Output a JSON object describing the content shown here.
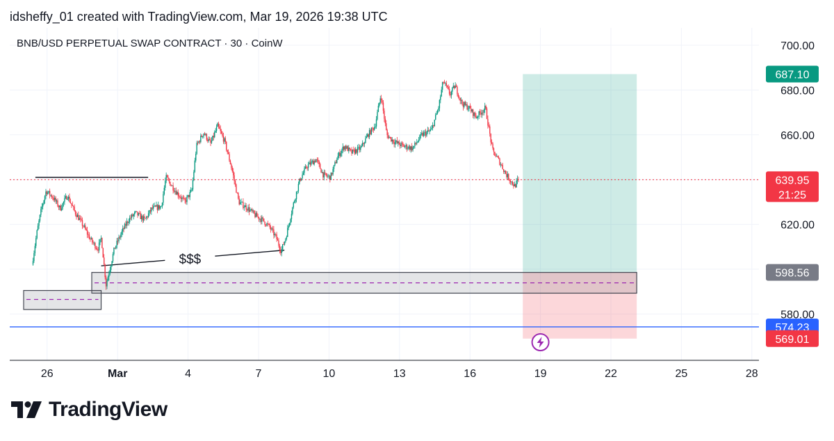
{
  "header": {
    "credit": "idsheffy_01 created with TradingView.com, Mar 19, 2026 19:38 UTC"
  },
  "chart": {
    "symbol_title": "BNB/USD PERPETUAL SWAP CONTRACT · 30 · CoinW"
  },
  "brand": {
    "name": "TradingView"
  },
  "chart_data": {
    "type": "candlestick",
    "title": "BNB/USD PERPETUAL SWAP CONTRACT · 30 · CoinW",
    "x_axis": {
      "start_date": "2026-02-25",
      "ticks": [
        {
          "label": "26",
          "day": 1
        },
        {
          "label": "Mar",
          "day": 4,
          "bold": true
        },
        {
          "label": "4",
          "day": 7
        },
        {
          "label": "7",
          "day": 10
        },
        {
          "label": "10",
          "day": 13
        },
        {
          "label": "13",
          "day": 16
        },
        {
          "label": "16",
          "day": 19
        },
        {
          "label": "19",
          "day": 22
        },
        {
          "label": "22",
          "day": 25
        },
        {
          "label": "25",
          "day": 28
        },
        {
          "label": "28",
          "day": 31
        }
      ]
    },
    "y_axis": {
      "ticks": [
        580,
        600,
        620,
        640,
        660,
        680,
        700
      ],
      "tick_labels": [
        "580.00",
        "600.00",
        "620.00",
        "640.00",
        "660.00",
        "680.00",
        "700.00"
      ],
      "ylim": [
        566,
        715
      ]
    },
    "price_path": [
      [
        0.4,
        602
      ],
      [
        0.6,
        616
      ],
      [
        0.8,
        627
      ],
      [
        1.0,
        635
      ],
      [
        1.3,
        632
      ],
      [
        1.6,
        627
      ],
      [
        1.9,
        633
      ],
      [
        2.2,
        626
      ],
      [
        2.6,
        619
      ],
      [
        2.9,
        613
      ],
      [
        3.2,
        609
      ],
      [
        3.35,
        614
      ],
      [
        3.55,
        593
      ],
      [
        3.75,
        602
      ],
      [
        3.9,
        609
      ],
      [
        4.2,
        616
      ],
      [
        4.5,
        622
      ],
      [
        4.8,
        625
      ],
      [
        5.2,
        622
      ],
      [
        5.5,
        627
      ],
      [
        5.9,
        628
      ],
      [
        6.1,
        641
      ],
      [
        6.5,
        635
      ],
      [
        6.9,
        630
      ],
      [
        7.2,
        635
      ],
      [
        7.4,
        655
      ],
      [
        7.7,
        661
      ],
      [
        8.0,
        656
      ],
      [
        8.3,
        664
      ],
      [
        8.6,
        657
      ],
      [
        8.9,
        645
      ],
      [
        9.2,
        630
      ],
      [
        9.6,
        627
      ],
      [
        9.9,
        624
      ],
      [
        10.2,
        622
      ],
      [
        10.5,
        619
      ],
      [
        10.8,
        614
      ],
      [
        11.0,
        608
      ],
      [
        11.2,
        614
      ],
      [
        11.5,
        628
      ],
      [
        11.8,
        640
      ],
      [
        12.1,
        646
      ],
      [
        12.5,
        649
      ],
      [
        12.8,
        642
      ],
      [
        13.1,
        641
      ],
      [
        13.4,
        650
      ],
      [
        13.7,
        655
      ],
      [
        14.0,
        652
      ],
      [
        14.4,
        654
      ],
      [
        14.7,
        660
      ],
      [
        15.0,
        664
      ],
      [
        15.25,
        678
      ],
      [
        15.5,
        660
      ],
      [
        15.8,
        657
      ],
      [
        16.2,
        655
      ],
      [
        16.6,
        654
      ],
      [
        17.0,
        660
      ],
      [
        17.4,
        662
      ],
      [
        17.7,
        672
      ],
      [
        17.9,
        684
      ],
      [
        18.2,
        678
      ],
      [
        18.4,
        682
      ],
      [
        18.7,
        674
      ],
      [
        19.0,
        672
      ],
      [
        19.3,
        668
      ],
      [
        19.7,
        672
      ],
      [
        20.0,
        653
      ],
      [
        20.3,
        648
      ],
      [
        20.6,
        642
      ],
      [
        20.95,
        637
      ],
      [
        21.1,
        640
      ]
    ],
    "last_price": 639.95,
    "countdown": "21:25",
    "last_price_label": "639.95",
    "position": {
      "start_day": 21.25,
      "end_day": 26.1,
      "entry": 598.56,
      "entry_label": "598.56",
      "target": 687.1,
      "target_label": "687.10",
      "stop": 569.01,
      "stop_label": "569.01"
    },
    "support_line": {
      "price": 574.23,
      "label": "574.23"
    },
    "zones": [
      {
        "start_day": 2.9,
        "end_day": 26.1,
        "top": 598.56,
        "bottom": 589.3,
        "mid": 593.9
      },
      {
        "start_day": 0.0,
        "end_day": 3.3,
        "top": 590.5,
        "bottom": 582.0,
        "mid": 586.5
      }
    ],
    "resistance_line": {
      "start_day": 0.5,
      "end_day": 5.3,
      "price": 641.0
    },
    "liquidity_line": {
      "start_day": 3.3,
      "start_price": 601.5,
      "end_day": 11.1,
      "end_price": 608.5,
      "label": "$$$"
    }
  }
}
